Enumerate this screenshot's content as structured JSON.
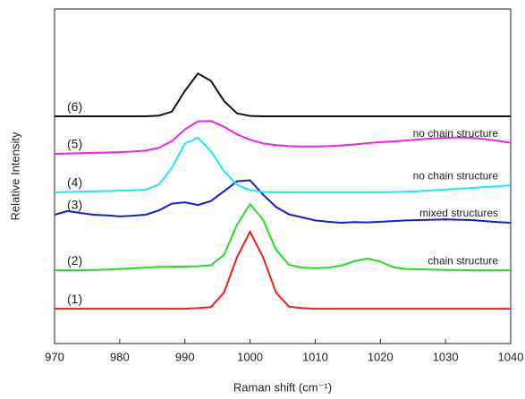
{
  "chart_data": {
    "type": "line",
    "x_label": "Raman shift (cm⁻¹)",
    "y_label": "Relative Intensity",
    "x": [
      970,
      972,
      974,
      976,
      978,
      980,
      982,
      984,
      986,
      988,
      990,
      992,
      994,
      996,
      998,
      1000,
      1002,
      1004,
      1006,
      1008,
      1010,
      1012,
      1014,
      1016,
      1018,
      1020,
      1022,
      1024,
      1026,
      1028,
      1030,
      1032,
      1034,
      1036,
      1038,
      1040
    ],
    "xlim": [
      970,
      1040
    ],
    "xticks": [
      970,
      980,
      990,
      1000,
      1010,
      1020,
      1030,
      1040
    ],
    "ylim": [
      0,
      100
    ],
    "series": [
      {
        "name": "(1)",
        "color": "#ee1c1c",
        "values": [
          10.4,
          10.4,
          10.4,
          10.4,
          10.4,
          10.4,
          10.4,
          10.4,
          10.4,
          10.4,
          10.4,
          10.6,
          10.9,
          15.2,
          25.8,
          33.4,
          25.8,
          15.2,
          11.0,
          10.6,
          10.4,
          10.4,
          10.4,
          10.4,
          10.4,
          10.4,
          10.4,
          10.4,
          10.4,
          10.4,
          10.4,
          10.4,
          10.4,
          10.4,
          10.4,
          10.4
        ]
      },
      {
        "name": "(2)",
        "color": "#22dd22",
        "annotation": "chain structure",
        "values": [
          21.9,
          21.9,
          21.9,
          22.0,
          22.1,
          22.3,
          22.5,
          22.7,
          22.9,
          23.0,
          23.0,
          23.1,
          23.4,
          26.5,
          35.5,
          41.7,
          37.0,
          28.0,
          23.5,
          22.7,
          22.5,
          22.7,
          23.3,
          24.6,
          25.4,
          24.5,
          22.8,
          22.3,
          22.2,
          22.1,
          22.0,
          22.0,
          21.9,
          21.9,
          21.9,
          21.9
        ]
      },
      {
        "name": "(3)",
        "color": "#1a1ad0",
        "annotation": "mixed structures",
        "values": [
          38.5,
          39.6,
          39.0,
          38.5,
          38.3,
          38.0,
          38.2,
          38.5,
          39.8,
          41.8,
          42.2,
          41.4,
          42.6,
          45.5,
          48.5,
          48.8,
          44.5,
          40.8,
          38.6,
          37.7,
          36.8,
          36.4,
          36.1,
          36.3,
          36.2,
          36.4,
          36.6,
          36.8,
          36.9,
          37.0,
          37.1,
          37.0,
          36.9,
          36.6,
          36.3,
          36.1
        ]
      },
      {
        "name": "(4)",
        "color": "#22e6f0",
        "annotation": "no chain structure",
        "values": [
          45.2,
          45.3,
          45.4,
          45.5,
          45.6,
          45.7,
          45.8,
          46.0,
          47.5,
          52.5,
          59.8,
          61.5,
          57.5,
          51.5,
          47.5,
          45.8,
          45.3,
          45.2,
          45.2,
          45.2,
          45.2,
          45.2,
          45.2,
          45.2,
          45.2,
          45.2,
          45.3,
          45.4,
          45.6,
          45.8,
          46.0,
          46.3,
          46.5,
          46.8,
          47.0,
          47.3
        ]
      },
      {
        "name": "(5)",
        "color": "#ee22ee",
        "annotation": "no chain structure",
        "values": [
          56.7,
          56.8,
          56.9,
          57.0,
          57.1,
          57.2,
          57.4,
          57.7,
          58.5,
          60.5,
          64.0,
          66.4,
          66.5,
          64.8,
          62.5,
          60.9,
          59.8,
          59.3,
          59.0,
          58.9,
          58.9,
          59.0,
          59.2,
          59.5,
          59.9,
          60.2,
          60.4,
          60.7,
          61.0,
          61.3,
          61.5,
          61.6,
          61.5,
          61.1,
          60.6,
          60.0
        ]
      },
      {
        "name": "(6)",
        "color": "#111111",
        "values": [
          67.9,
          67.9,
          67.9,
          67.9,
          67.9,
          67.9,
          67.9,
          67.9,
          68.1,
          69.3,
          75.5,
          80.7,
          78.5,
          72.5,
          68.8,
          68.0,
          67.9,
          67.9,
          67.9,
          67.9,
          67.9,
          67.9,
          67.9,
          67.9,
          67.9,
          67.9,
          67.9,
          67.9,
          67.9,
          67.9,
          67.9,
          67.9,
          67.9,
          67.9,
          67.9,
          67.9
        ]
      }
    ]
  }
}
